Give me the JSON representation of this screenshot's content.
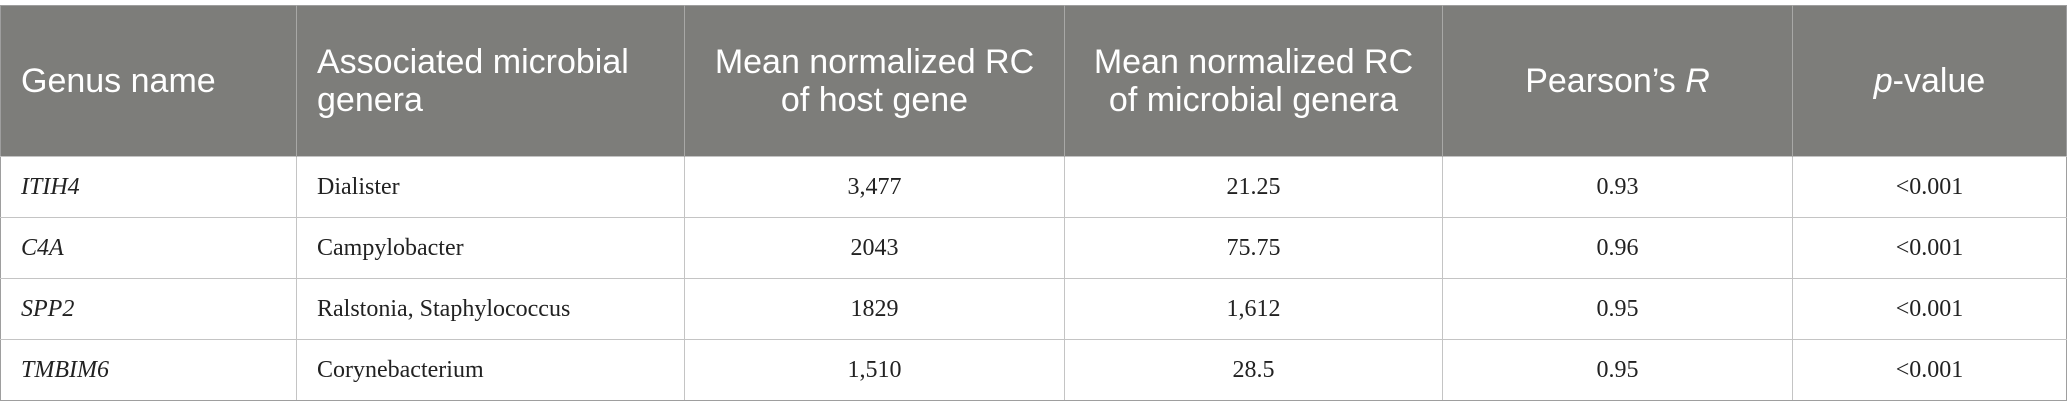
{
  "table": {
    "headers": {
      "genus_name": "Genus name",
      "associated_genera": "Associated microbial genera",
      "mean_host": "Mean normalized RC of host gene",
      "mean_microbial": "Mean normalized RC of microbial genera",
      "pearson_prefix": "Pearson’s ",
      "pearson_symbol": "R",
      "pvalue_symbol": "p",
      "pvalue_suffix": "-value"
    },
    "rows": [
      {
        "gene": "ITIH4",
        "genera": "Dialister",
        "host_rc": "3,477",
        "microbial_rc": "21.25",
        "pearson_r": "0.93",
        "p_value": "<0.001"
      },
      {
        "gene": "C4A",
        "genera": "Campylobacter",
        "host_rc": "2043",
        "microbial_rc": "75.75",
        "pearson_r": "0.96",
        "p_value": "<0.001"
      },
      {
        "gene": "SPP2",
        "genera": "Ralstonia, Staphylococcus",
        "host_rc": "1829",
        "microbial_rc": "1,612",
        "pearson_r": "0.95",
        "p_value": "<0.001"
      },
      {
        "gene": "TMBIM6",
        "genera": "Corynebacterium",
        "host_rc": "1,510",
        "microbial_rc": "28.5",
        "pearson_r": "0.95",
        "p_value": "<0.001"
      }
    ]
  },
  "colors": {
    "header_background": "#7d7d7a",
    "header_text": "#ffffff",
    "border": "#c4c4c4"
  }
}
